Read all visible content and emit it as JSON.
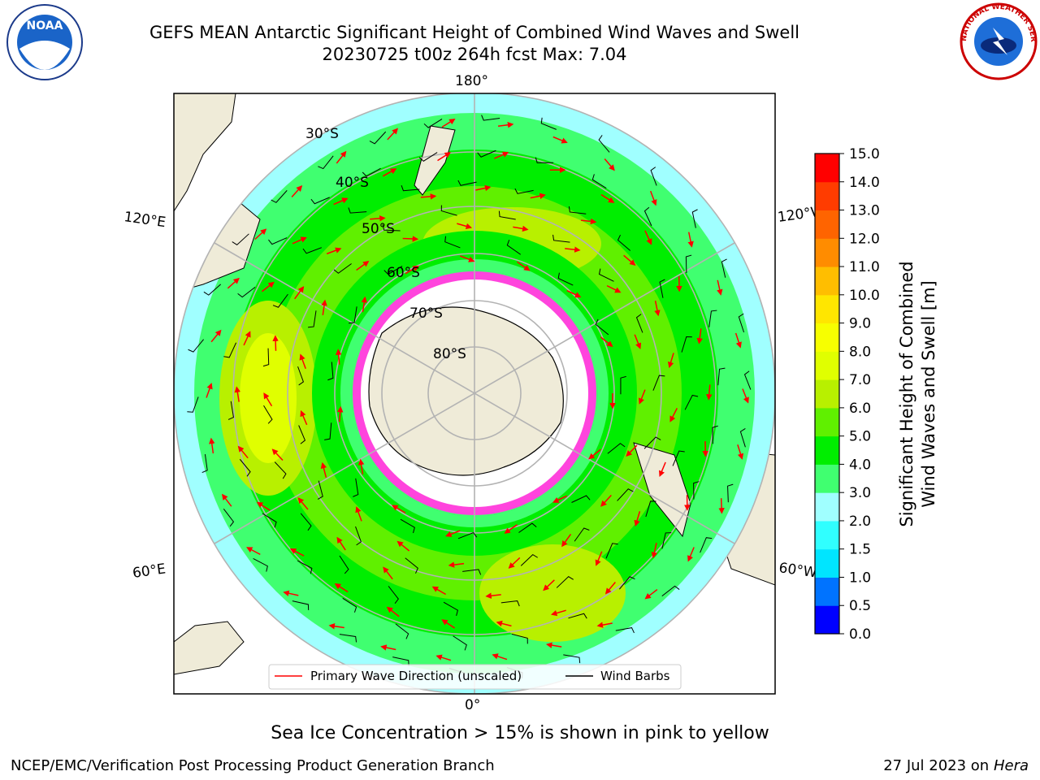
{
  "title": {
    "line1": "GEFS MEAN Antarctic Significant Height of Combined Wind Waves and Swell",
    "line2": "20230725 t00z 264h fcst   Max: 7.04"
  },
  "logos": {
    "left": {
      "name": "noaa-logo",
      "text": "NOAA"
    },
    "right": {
      "name": "nws-logo",
      "text": "NATIONAL WEATHER SERVICE"
    }
  },
  "map": {
    "projection": "south-polar-stereographic",
    "longitude_labels": [
      "180°",
      "120°E",
      "120°W",
      "60°E",
      "60°W",
      "0°"
    ],
    "latitude_labels": [
      "30°S",
      "40°S",
      "50°S",
      "60°S",
      "70°S",
      "80°S"
    ],
    "colors": {
      "land": "#efebd8",
      "ice_free_white": "#ffffff",
      "sea_ice": "#ff44dd",
      "grid": "#b3b3b3",
      "wave_arrow": "#ff0000",
      "wind_barb": "#000000"
    }
  },
  "legend": {
    "items": [
      {
        "label": "Primary Wave Direction (unscaled)",
        "color": "#ff0000"
      },
      {
        "label": "Wind Barbs",
        "color": "#000000"
      }
    ]
  },
  "colorbar": {
    "label_line1": "Significant Height of Combined",
    "label_line2": "Wind Waves and Swell [m]",
    "ticks": [
      "0.0",
      "0.5",
      "1.0",
      "1.5",
      "2.0",
      "3.0",
      "4.0",
      "5.0",
      "6.0",
      "7.0",
      "8.0",
      "9.0",
      "10.0",
      "11.0",
      "12.0",
      "13.0",
      "14.0",
      "15.0"
    ],
    "colors": [
      "#0000ff",
      "#0073ff",
      "#00e5ff",
      "#30ffff",
      "#a0ffff",
      "#40ff70",
      "#00ee00",
      "#60f000",
      "#b8f000",
      "#e0ff00",
      "#f7ff00",
      "#ffe600",
      "#ffbe00",
      "#ff8c00",
      "#ff6400",
      "#ff3c00",
      "#ff0000"
    ]
  },
  "footnote": "Sea Ice Concentration > 15% is shown in pink to yellow",
  "credits": {
    "left": "NCEP/EMC/Verification Post Processing Product Generation Branch",
    "right_prefix": "27 Jul 2023 on ",
    "right_host": "Hera"
  }
}
